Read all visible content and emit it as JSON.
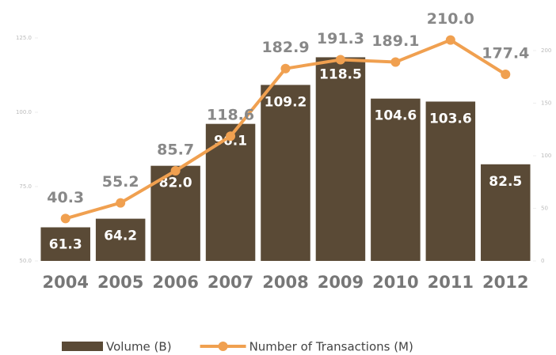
{
  "chart_data": {
    "type": "bar-line",
    "categories": [
      "2004",
      "2005",
      "2006",
      "2007",
      "2008",
      "2009",
      "2010",
      "2011",
      "2012"
    ],
    "series": [
      {
        "name": "Volume (B)",
        "color": "#5a4a36",
        "type": "bar",
        "axis": "y",
        "values": [
          61.3,
          64.2,
          82.0,
          96.1,
          109.2,
          118.5,
          104.6,
          103.6,
          82.5
        ],
        "value_labels": [
          "61.3",
          "64.2",
          "82.0",
          "96.1",
          "109.2",
          "118.5",
          "104.6",
          "103.6",
          "82.5"
        ]
      },
      {
        "name": "Number of Transactions (M)",
        "color": "#f0a050",
        "type": "line",
        "axis": "y2",
        "values": [
          40.3,
          55.2,
          85.7,
          118.6,
          182.9,
          191.3,
          189.1,
          210.0,
          177.4
        ],
        "value_labels": [
          "40.3",
          "55.2",
          "85.7",
          "118.6",
          "182.9",
          "191.3",
          "189.1",
          "210.0",
          "177.4"
        ]
      }
    ],
    "ylim": [
      50,
      125
    ],
    "yticks": [
      {
        "value": 50,
        "label": "50.0"
      },
      {
        "value": 75,
        "label": "75.0"
      },
      {
        "value": 100,
        "label": "100.0"
      },
      {
        "value": 125,
        "label": "125.0"
      }
    ],
    "y2lim": [
      0,
      212
    ],
    "y2ticks": [
      0,
      50,
      100,
      150,
      200
    ],
    "legend": "bottom"
  }
}
